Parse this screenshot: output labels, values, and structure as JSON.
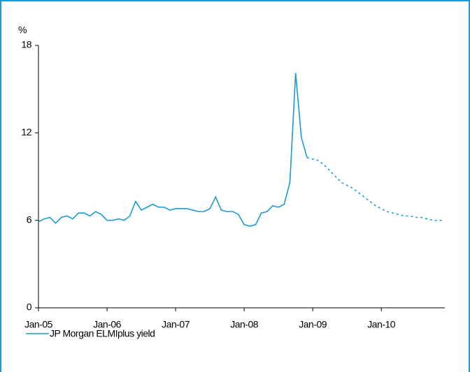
{
  "chart_data": {
    "type": "line",
    "y_label": "%",
    "categories": [
      "Jan-05",
      null,
      null,
      null,
      null,
      null,
      null,
      null,
      null,
      null,
      null,
      null,
      "Jan-06",
      null,
      null,
      null,
      null,
      null,
      null,
      null,
      null,
      null,
      null,
      null,
      "Jan-07",
      null,
      null,
      null,
      null,
      null,
      null,
      null,
      null,
      null,
      null,
      null,
      "Jan-08",
      null,
      null,
      null,
      null,
      null,
      null,
      null,
      null,
      null,
      null,
      null,
      "Jan-09",
      null,
      null,
      null,
      null,
      null,
      null,
      null,
      null,
      null,
      null,
      null,
      "Jan-10",
      null,
      null,
      null,
      null,
      null,
      null,
      null,
      null,
      null,
      null,
      null
    ],
    "series": [
      {
        "name": "JP Morgan ELMIplus yield",
        "color": "#1a9ad6",
        "style": "solid",
        "values": [
          5.9,
          6.1,
          6.2,
          5.8,
          6.2,
          6.3,
          6.1,
          6.5,
          6.5,
          6.3,
          6.6,
          6.4,
          6.0,
          6.0,
          6.1,
          6.0,
          6.3,
          7.3,
          6.7,
          6.9,
          7.1,
          6.9,
          6.9,
          6.7,
          6.8,
          6.8,
          6.8,
          6.7,
          6.6,
          6.6,
          6.8,
          7.6,
          6.7,
          6.6,
          6.6,
          6.4,
          5.7,
          5.6,
          5.7,
          6.5,
          6.6,
          7.0,
          6.9,
          7.1,
          8.6,
          16.1,
          11.7,
          10.3,
          null,
          null,
          null,
          null,
          null,
          null,
          null,
          null,
          null,
          null,
          null,
          null,
          null,
          null,
          null,
          null,
          null,
          null,
          null,
          null,
          null,
          null,
          null,
          null
        ]
      },
      {
        "color": "#1a9ad6",
        "style": "dotted",
        "values": [
          null,
          null,
          null,
          null,
          null,
          null,
          null,
          null,
          null,
          null,
          null,
          null,
          null,
          null,
          null,
          null,
          null,
          null,
          null,
          null,
          null,
          null,
          null,
          null,
          null,
          null,
          null,
          null,
          null,
          null,
          null,
          null,
          null,
          null,
          null,
          null,
          null,
          null,
          null,
          null,
          null,
          null,
          null,
          null,
          null,
          null,
          null,
          10.3,
          10.2,
          10.1,
          9.8,
          9.4,
          9.0,
          8.6,
          8.4,
          8.2,
          7.9,
          7.6,
          7.3,
          7.0,
          6.8,
          6.6,
          6.5,
          6.4,
          6.3,
          6.3,
          6.2,
          6.2,
          6.1,
          6.0,
          6.0,
          6.0
        ]
      }
    ],
    "ylim": [
      0,
      18
    ],
    "yticks": [
      0,
      6,
      12,
      18
    ],
    "grid": false
  }
}
